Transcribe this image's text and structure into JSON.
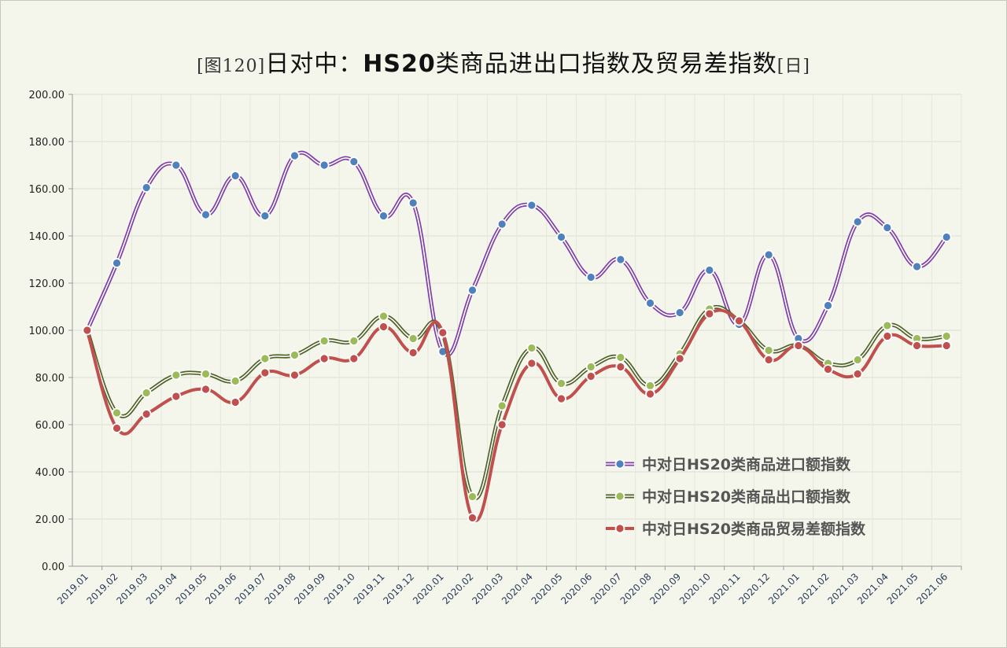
{
  "chart_data": {
    "type": "line",
    "title": {
      "prefix": "[图120]",
      "main_a": "日对中：",
      "main_hs": "HS20",
      "main_b": "类商品进出口指数及贸易差指数",
      "suffix": "[日]"
    },
    "xlabel": "",
    "ylabel": "",
    "ylim": [
      0,
      200
    ],
    "yticks": [
      "0.00",
      "20.00",
      "40.00",
      "60.00",
      "80.00",
      "100.00",
      "120.00",
      "140.00",
      "160.00",
      "180.00",
      "200.00"
    ],
    "grid": true,
    "legend_position": "bottom-right",
    "categories": [
      "2019.01",
      "2019.02",
      "2019.03",
      "2019.04",
      "2019.05",
      "2019.06",
      "2019.07",
      "2019.08",
      "2019.09",
      "2019.10",
      "2019.11",
      "2019.12",
      "2020.01",
      "2020.02",
      "2020.03",
      "2020.04",
      "2020.05",
      "2020.06",
      "2020.07",
      "2020.08",
      "2020.09",
      "2020.10",
      "2020.11",
      "2020.12",
      "2021.01",
      "2021.02",
      "2021.03",
      "2021.04",
      "2021.05",
      "2021.06"
    ],
    "series": [
      {
        "name": "中对日HS20类商品进口额指数",
        "line_color": "#7f3fa6",
        "marker_color": "#4f81bd",
        "values": [
          100,
          128.5,
          160.5,
          170,
          149,
          165.5,
          148.5,
          174,
          170,
          171.5,
          148.5,
          154,
          91,
          117,
          145,
          153,
          139.5,
          122.5,
          130,
          111.5,
          107.5,
          125.5,
          102.5,
          132,
          96.5,
          110.5,
          146,
          143.5,
          127,
          139.5
        ]
      },
      {
        "name": "中对日HS20类商品出口额指数",
        "line_color": "#4f6228",
        "marker_color": "#9bbb59",
        "values": [
          100,
          65,
          73.5,
          81,
          81.5,
          78.5,
          88,
          89.5,
          95.5,
          95.5,
          106,
          96.5,
          98.5,
          29.5,
          68,
          92.5,
          77.5,
          84.5,
          88.5,
          76.5,
          90,
          109,
          104,
          91.5,
          93.5,
          86,
          87.5,
          102,
          96.5,
          97.5
        ]
      },
      {
        "name": "中对日HS20类商品贸易差额指数",
        "line_color": "#c0504d",
        "marker_color": "#c0504d",
        "values": [
          100,
          58.5,
          64.5,
          72,
          75,
          69.5,
          82,
          81,
          88,
          88,
          101.5,
          90.5,
          99,
          20.5,
          60,
          86,
          71,
          80.5,
          84.5,
          73,
          88,
          107,
          104,
          87.5,
          93.5,
          83.5,
          81.5,
          97.5,
          93.5,
          93.5
        ]
      }
    ]
  }
}
